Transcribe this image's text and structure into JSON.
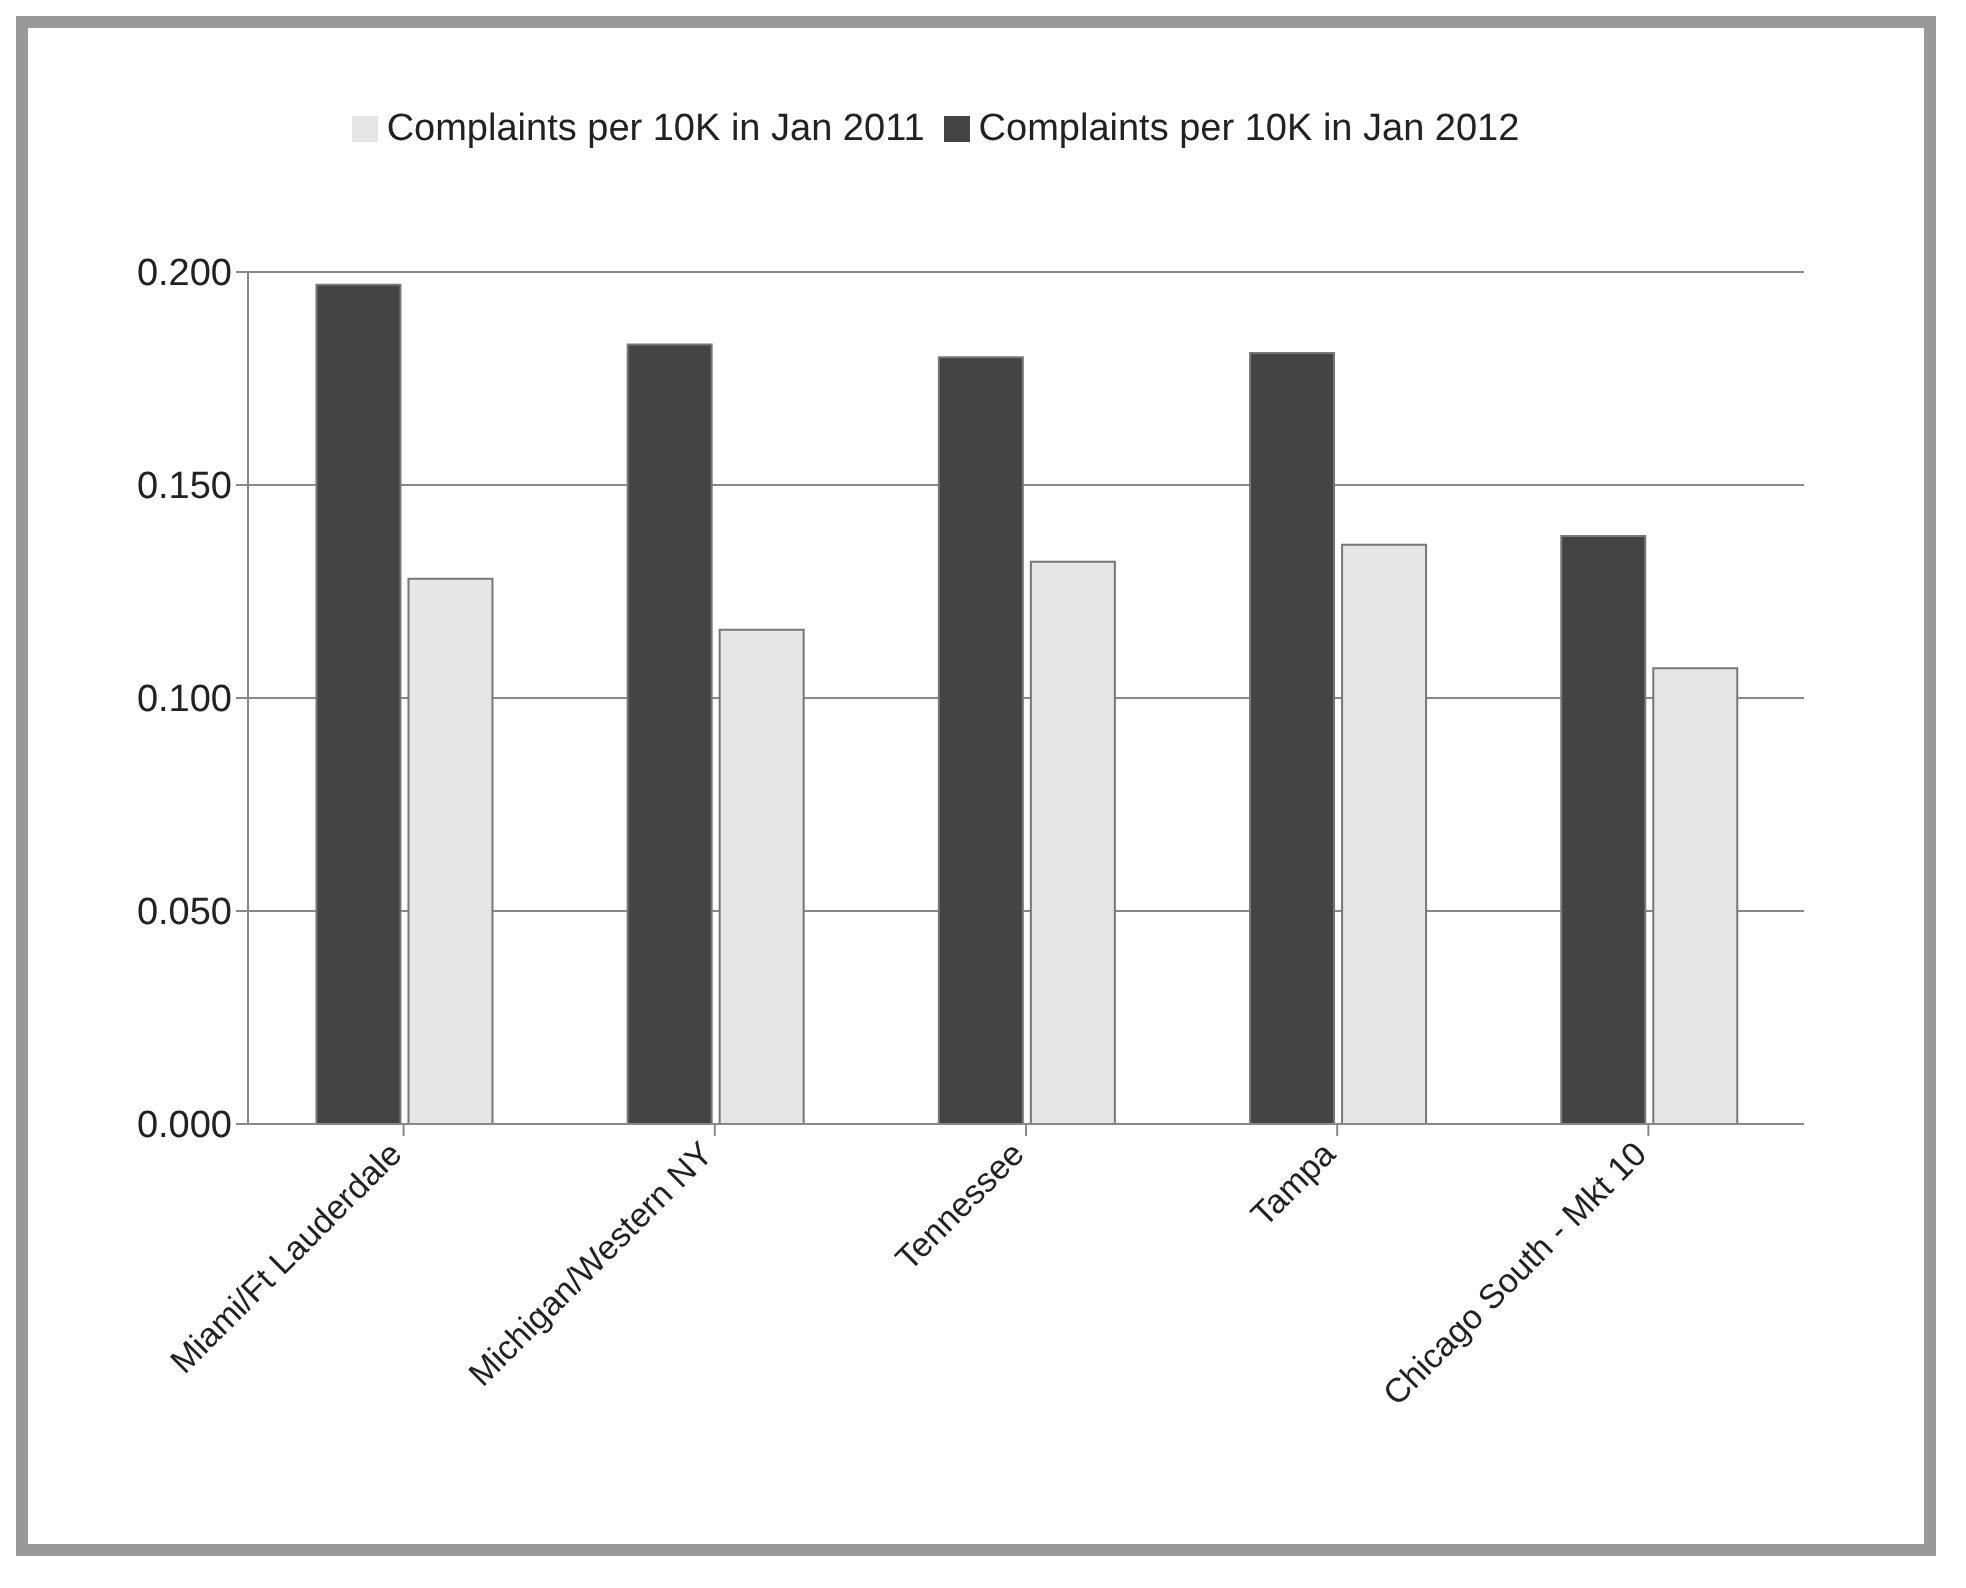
{
  "chart_data": {
    "type": "bar",
    "categories": [
      "Miami/Ft Lauderdale",
      "Michigan/Western NY",
      "Tennessee",
      "Tampa",
      "Chicago South - Mkt 10"
    ],
    "series": [
      {
        "name": "Complaints per 10K in Jan 2012",
        "color": "#444444",
        "values": [
          0.197,
          0.183,
          0.18,
          0.181,
          0.138
        ]
      },
      {
        "name": "Complaints per 10K in Jan 2011",
        "color": "#e6e6e6",
        "values": [
          0.128,
          0.116,
          0.132,
          0.136,
          0.107
        ]
      }
    ],
    "ylim": [
      0,
      0.2
    ],
    "yticks": [
      {
        "value": 0,
        "label": "0.000"
      },
      {
        "value": 0.05,
        "label": "0.050"
      },
      {
        "value": 0.1,
        "label": "0.100"
      },
      {
        "value": 0.15,
        "label": "0.150"
      },
      {
        "value": 0.2,
        "label": "0.200"
      }
    ],
    "grid": "y",
    "legend": "top"
  }
}
